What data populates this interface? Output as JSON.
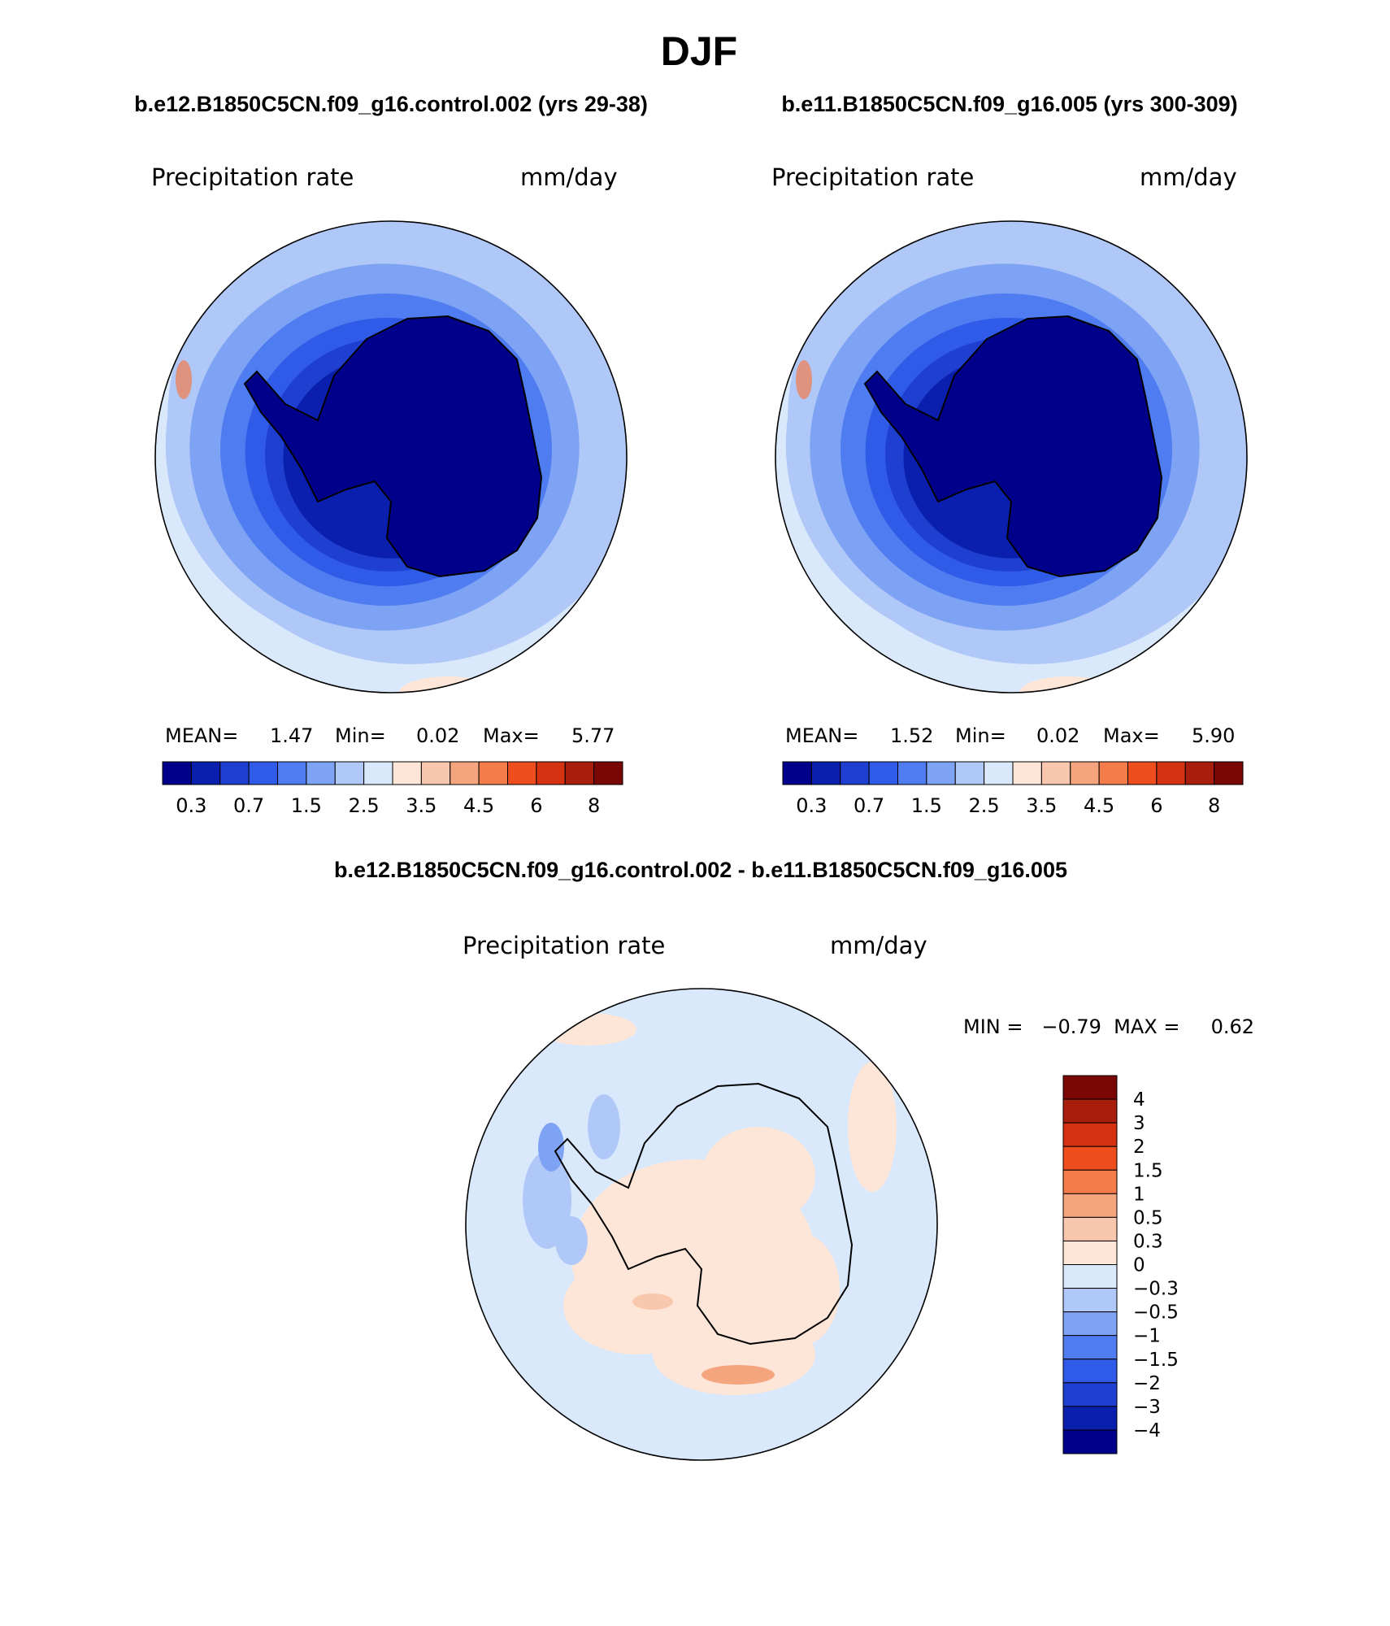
{
  "season": "DJF",
  "panels": [
    {
      "case_label": "b.e12.B1850C5CN.f09_g16.control.002 (yrs 29-38)",
      "variable": "Precipitation rate",
      "units": "mm/day",
      "stats": {
        "mean_label": "MEAN=",
        "mean": "1.47",
        "min_label": "Min=",
        "min": "0.02",
        "max_label": "Max=",
        "max": "5.77"
      }
    },
    {
      "case_label": "b.e11.B1850C5CN.f09_g16.005 (yrs 300-309)",
      "variable": "Precipitation rate",
      "units": "mm/day",
      "stats": {
        "mean_label": "MEAN=",
        "mean": "1.52",
        "min_label": "Min=",
        "min": "0.02",
        "max_label": "Max=",
        "max": "5.90"
      }
    }
  ],
  "difference": {
    "title": "b.e12.B1850C5CN.f09_g16.control.002 - b.e11.B1850C5CN.f09_g16.005",
    "variable": "Precipitation rate",
    "units": "mm/day",
    "min_max_text": "MIN =   −0.79  MAX =     0.62"
  },
  "colorbar_abs": {
    "colors": [
      "#00008b",
      "#0b1fae",
      "#1f3fd0",
      "#2f5be8",
      "#4f7cf0",
      "#7ea3f4",
      "#b0c8f7",
      "#d9e9fb",
      "#fde6d8",
      "#f9c7ad",
      "#f5a57e",
      "#f47b4a",
      "#ee4d1e",
      "#d43210",
      "#a81d0b",
      "#7a0606"
    ],
    "tick_labels": [
      "0.3",
      "0.7",
      "1.5",
      "2.5",
      "3.5",
      "4.5",
      "6",
      "8"
    ]
  },
  "colorbar_diff": {
    "colors": [
      "#00008b",
      "#0b1fae",
      "#1f3fd0",
      "#2f5be8",
      "#4f7cf0",
      "#7ea3f4",
      "#b0c8f7",
      "#d9e9fb",
      "#fde6d8",
      "#f9c7ad",
      "#f5a57e",
      "#f47b4a",
      "#ee4d1e",
      "#d43210",
      "#a81d0b",
      "#7a0606"
    ],
    "tick_labels": [
      "4",
      "3",
      "2",
      "1.5",
      "1",
      "0.5",
      "0.3",
      "0",
      "−0.3",
      "−0.5",
      "−1",
      "−1.5",
      "−2",
      "−3",
      "−4"
    ]
  },
  "map_colors": {
    "ring1": "#d9e9fb",
    "ring2": "#b0c8f7",
    "ring3": "#7ea3f4",
    "ring4": "#4f7cf0",
    "ring5": "#2f5be8",
    "ring6": "#1f3fd0",
    "ring7": "#0b1fae",
    "continent": "#00008b",
    "warm": "#fde6d8",
    "warm2": "#f9c7ad",
    "warm3": "#f47b4a",
    "diff_base": "#d9e9fb",
    "diff_warm": "#fde6d8",
    "diff_blue": "#b0c8f7",
    "diff_blue2": "#7ea3f4",
    "diff_red": "#f9c7ad",
    "diff_red2": "#f5a57e"
  }
}
